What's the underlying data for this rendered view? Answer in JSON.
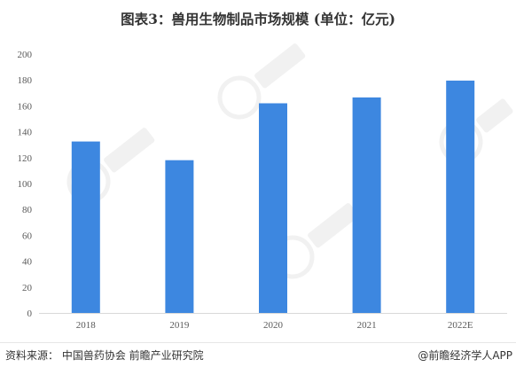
{
  "title": "图表3：兽用生物制品市场规模 (单位：亿元)",
  "footer": {
    "source": "资料来源：  中国兽药协会 前瞻产业研究院",
    "credit": "@前瞻经济学人APP"
  },
  "chart_data": {
    "type": "bar",
    "categories": [
      "2018",
      "2019",
      "2020",
      "2021",
      "2022E"
    ],
    "values": [
      132.5,
      118,
      162,
      166.5,
      179.5
    ],
    "ylim": [
      0,
      200
    ],
    "yticks": [
      0,
      20,
      40,
      60,
      80,
      100,
      120,
      140,
      160,
      180,
      200
    ],
    "grid": false,
    "legend": "none",
    "bar_color": "#3d87e0"
  }
}
